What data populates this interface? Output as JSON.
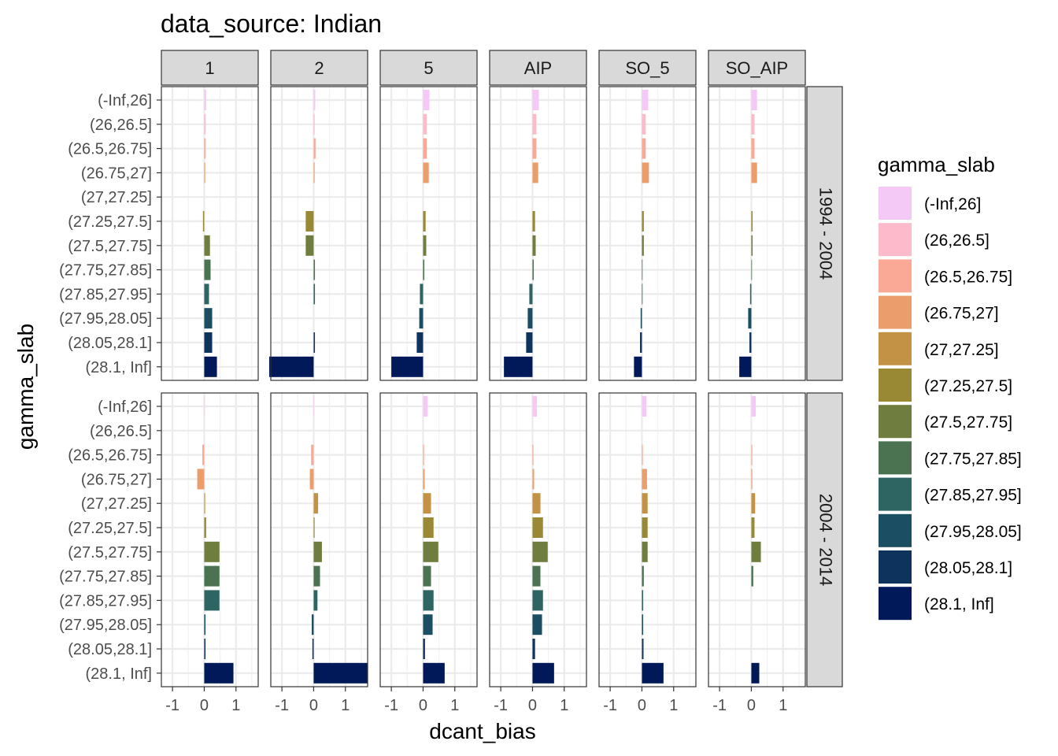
{
  "chart_data": {
    "type": "bar",
    "title": "data_source: Indian",
    "xlabel": "dcant_bias",
    "ylabel": "gamma_slab",
    "xlim": [
      -1.35,
      1.7
    ],
    "x_ticks": [
      -1,
      0,
      1
    ],
    "x_tick_labels": [
      "-1",
      "0",
      "1"
    ],
    "grid": true,
    "legend": {
      "title": "gamma_slab",
      "placement": "right",
      "entries": [
        "(-Inf,26]",
        "(26,26.5]",
        "(26.5,26.75]",
        "(26.75,27]",
        "(27,27.25]",
        "(27.25,27.5]",
        "(27.5,27.75]",
        "(27.75,27.85]",
        "(27.85,27.95]",
        "(27.95,28.05]",
        "(28.05,28.1]",
        "(28.1, Inf]"
      ]
    },
    "categories": [
      "(-Inf,26]",
      "(26,26.5]",
      "(26.5,26.75]",
      "(26.75,27]",
      "(27,27.25]",
      "(27.25,27.5]",
      "(27.5,27.75]",
      "(27.75,27.85]",
      "(27.85,27.95]",
      "(27.95,28.05]",
      "(28.05,28.1]",
      "(28.1, Inf]"
    ],
    "colors": [
      "#F5C9F5",
      "#FCBACA",
      "#F9A996",
      "#EB9D6B",
      "#C39244",
      "#998934",
      "#6F7D3E",
      "#4B7251",
      "#2E6462",
      "#1B4D63",
      "#0E335C",
      "#011959"
    ],
    "columns": [
      "1",
      "2",
      "5",
      "AIP",
      "SO_5",
      "SO_AIP"
    ],
    "rows": [
      "1994 - 2004",
      "2004 - 2014"
    ],
    "panels": [
      {
        "row": "1994 - 2004",
        "column": "1",
        "values": [
          0.06,
          0.04,
          0.04,
          0.03,
          0.0,
          -0.04,
          0.18,
          0.2,
          0.15,
          0.25,
          0.25,
          0.4
        ]
      },
      {
        "row": "1994 - 2004",
        "column": "2",
        "values": [
          0.05,
          0.03,
          0.06,
          0.03,
          0.0,
          -0.25,
          -0.25,
          0.04,
          0.04,
          0.0,
          0.04,
          -1.4
        ]
      },
      {
        "row": "1994 - 2004",
        "column": "5",
        "values": [
          0.2,
          0.12,
          0.12,
          0.18,
          0.0,
          0.08,
          0.1,
          0.04,
          -0.1,
          -0.12,
          -0.2,
          -1.0
        ]
      },
      {
        "row": "1994 - 2004",
        "column": "AIP",
        "values": [
          0.2,
          0.12,
          0.12,
          0.18,
          0.0,
          0.08,
          0.1,
          0.04,
          -0.1,
          -0.15,
          -0.2,
          -0.9
        ]
      },
      {
        "row": "1994 - 2004",
        "column": "SO_5",
        "values": [
          0.2,
          0.12,
          0.12,
          0.22,
          0.0,
          0.06,
          0.06,
          0.02,
          0.02,
          -0.04,
          -0.06,
          -0.25
        ]
      },
      {
        "row": "1994 - 2004",
        "column": "SO_AIP",
        "values": [
          0.18,
          0.1,
          0.1,
          0.18,
          0.0,
          0.04,
          0.04,
          0.01,
          -0.04,
          -0.1,
          -0.06,
          -0.38
        ]
      },
      {
        "row": "2004 - 2014",
        "column": "1",
        "values": [
          0.02,
          0.0,
          -0.06,
          -0.22,
          0.03,
          0.06,
          0.48,
          0.48,
          0.48,
          0.04,
          0.04,
          0.92
        ]
      },
      {
        "row": "2004 - 2014",
        "column": "2",
        "values": [
          0.02,
          0.0,
          -0.08,
          -0.12,
          0.14,
          0.03,
          0.26,
          0.2,
          0.12,
          -0.06,
          -0.04,
          1.7
        ]
      },
      {
        "row": "2004 - 2014",
        "column": "5",
        "values": [
          0.14,
          0.0,
          0.03,
          0.05,
          0.25,
          0.33,
          0.48,
          0.25,
          0.33,
          0.3,
          0.06,
          0.68
        ]
      },
      {
        "row": "2004 - 2014",
        "column": "AIP",
        "values": [
          0.14,
          0.0,
          0.03,
          0.05,
          0.25,
          0.33,
          0.48,
          0.25,
          0.33,
          0.3,
          0.08,
          0.68
        ]
      },
      {
        "row": "2004 - 2014",
        "column": "SO_5",
        "values": [
          0.14,
          0.0,
          0.03,
          0.16,
          0.18,
          0.18,
          0.18,
          0.06,
          0.04,
          0.04,
          0.05,
          0.68
        ]
      },
      {
        "row": "2004 - 2014",
        "column": "SO_AIP",
        "values": [
          0.14,
          0.0,
          0.03,
          0.03,
          0.12,
          0.1,
          0.3,
          0.06,
          0.0,
          0.0,
          0.0,
          0.25
        ]
      }
    ]
  }
}
